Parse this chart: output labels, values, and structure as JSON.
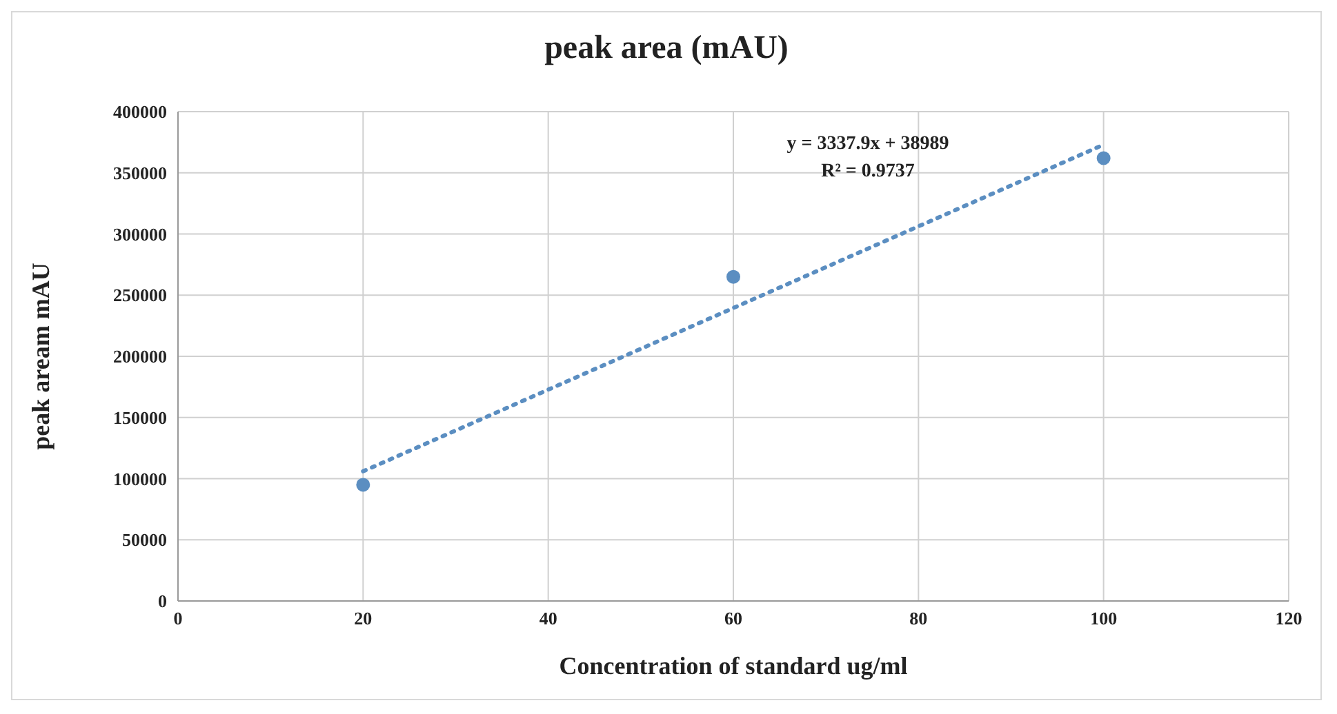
{
  "chart_data": {
    "type": "scatter",
    "title": "peak area (mAU)",
    "xlabel": "Concentration of standard ug/ml",
    "ylabel": "peak aream mAU",
    "series": [
      {
        "color": "#5b8ec1",
        "x": [
          20,
          60,
          100
        ],
        "values": [
          95000,
          265000,
          362000
        ]
      },
      {
        "type": "line",
        "color": "#5b8ec1",
        "x": [
          20,
          100
        ],
        "values": [
          106000,
          373000
        ],
        "line_style": "dotted",
        "marker": "none"
      }
    ],
    "annotations": [
      "y = 3337.9x + 38989",
      "R² = 0.9737"
    ],
    "xlim": [
      0,
      120
    ],
    "xticks": [
      0,
      20,
      40,
      60,
      80,
      100,
      120
    ],
    "ylim": [
      0,
      400000
    ],
    "yticks": [
      0,
      50000,
      100000,
      150000,
      200000,
      250000,
      300000,
      350000,
      400000
    ],
    "grid": true,
    "marker": "circle"
  }
}
